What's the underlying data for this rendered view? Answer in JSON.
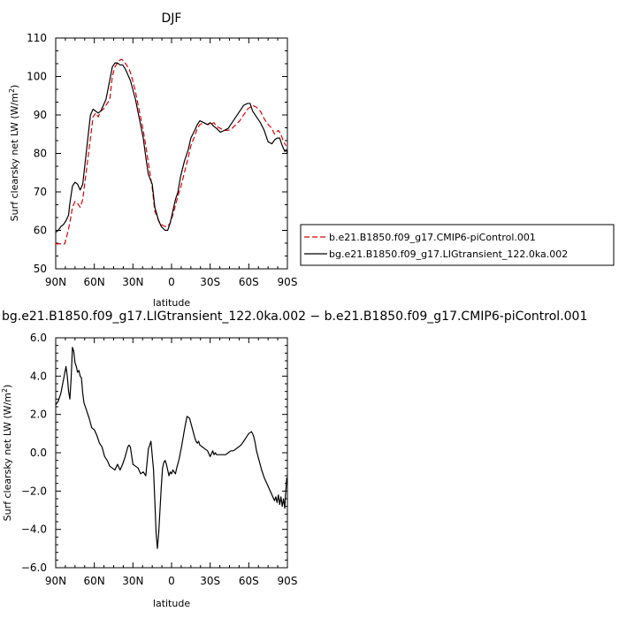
{
  "chart_data": [
    {
      "type": "line",
      "title": "DJF",
      "xlabel": "latitude",
      "ylabel": "Surf clearsky net LW (W/m",
      "ylabel_sup": "2",
      "ylabel_close": ")",
      "xlim": [
        90,
        -90
      ],
      "ylim": [
        50,
        110
      ],
      "xticks": [
        {
          "value": 90,
          "label": "90N"
        },
        {
          "value": 60,
          "label": "60N"
        },
        {
          "value": 30,
          "label": "30N"
        },
        {
          "value": 0,
          "label": "0"
        },
        {
          "value": -30,
          "label": "30S"
        },
        {
          "value": -60,
          "label": "60S"
        },
        {
          "value": -90,
          "label": "90S"
        }
      ],
      "yticks": [
        {
          "value": 50,
          "label": "50"
        },
        {
          "value": 60,
          "label": "60"
        },
        {
          "value": 70,
          "label": "70"
        },
        {
          "value": 80,
          "label": "80"
        },
        {
          "value": 90,
          "label": "90"
        },
        {
          "value": 100,
          "label": "100"
        },
        {
          "value": 110,
          "label": "110"
        }
      ],
      "grid": false,
      "legend_position": "right",
      "series": [
        {
          "name": "b.e21.B1850.f09_g17.CMIP6-piControl.001",
          "color": "#e00000",
          "dash": "dashed",
          "x": [
            90,
            87,
            85,
            83,
            81,
            79,
            77,
            75,
            73,
            71,
            69,
            66,
            63,
            61,
            59,
            57,
            55,
            53,
            51,
            48,
            46,
            44,
            41,
            39,
            37,
            35,
            33,
            31,
            28,
            25,
            22,
            20,
            18,
            15,
            13,
            10,
            8,
            5,
            3,
            1,
            -1,
            -3,
            -5,
            -7,
            -10,
            -13,
            -15,
            -18,
            -20,
            -22,
            -25,
            -28,
            -30,
            -33,
            -35,
            -38,
            -41,
            -44,
            -47,
            -50,
            -53,
            -56,
            -59,
            -61,
            -63,
            -66,
            -69,
            -72,
            -75,
            -78,
            -80,
            -83,
            -85,
            -87,
            -89
          ],
          "y": [
            56.5,
            56.5,
            56.5,
            56.5,
            59,
            62,
            66,
            67.5,
            67,
            66,
            68,
            76,
            84,
            89.5,
            90.5,
            89.5,
            91,
            91.5,
            92.5,
            94,
            100,
            102.5,
            104,
            104.5,
            104,
            103,
            102,
            100,
            96,
            91,
            86,
            82,
            77.5,
            71,
            65,
            62.5,
            61.5,
            61,
            61,
            62,
            64,
            66.5,
            69,
            71,
            75,
            79,
            82,
            84.5,
            86.5,
            87.5,
            88,
            87.5,
            87.5,
            88,
            87,
            86.5,
            86,
            86,
            86.5,
            87.5,
            88.5,
            90,
            91.5,
            92,
            92.5,
            92,
            91,
            89,
            87.5,
            86.5,
            85,
            86,
            85,
            83,
            82
          ]
        },
        {
          "name": "bg.e21.B1850.f09_g17.LIGtransient_122.0ka.002",
          "color": "#000000",
          "dash": "solid",
          "x": [
            90,
            88,
            86,
            84,
            82,
            80,
            79,
            77,
            75,
            73,
            71,
            69,
            67,
            65,
            63,
            61,
            59,
            57,
            55,
            53,
            51,
            48,
            46,
            44,
            42,
            40,
            38,
            36,
            34,
            32,
            30,
            28,
            25,
            22,
            20,
            18,
            15,
            13,
            10,
            8,
            5,
            3,
            1,
            -1,
            -3,
            -5,
            -7,
            -10,
            -13,
            -15,
            -18,
            -20,
            -22,
            -25,
            -28,
            -30,
            -33,
            -35,
            -38,
            -41,
            -44,
            -47,
            -50,
            -53,
            -56,
            -59,
            -61,
            -63,
            -66,
            -69,
            -72,
            -75,
            -78,
            -80,
            -82,
            -84,
            -86,
            -88,
            -89,
            -90
          ],
          "y": [
            59.5,
            60,
            61,
            61.5,
            62.5,
            64,
            67,
            71.5,
            72.5,
            72,
            70.5,
            72,
            78,
            84,
            90,
            91.5,
            91,
            90.5,
            91,
            92.5,
            94,
            99,
            102.5,
            103.5,
            103.5,
            103,
            103,
            102,
            100.5,
            99,
            96.5,
            94,
            89,
            84,
            79,
            74.5,
            72,
            66,
            62.5,
            61,
            60,
            60,
            62,
            65,
            68,
            70,
            74,
            78,
            81,
            84,
            86,
            87.5,
            88.5,
            88,
            87.5,
            88,
            87,
            86.5,
            85.5,
            86,
            86.5,
            88,
            89.5,
            91,
            92.5,
            93,
            93,
            91,
            89.5,
            88,
            86,
            83,
            82.5,
            83.5,
            84,
            84,
            82,
            80.5,
            81,
            80
          ]
        }
      ]
    },
    {
      "type": "line",
      "title": "bg.e21.B1850.f09_g17.LIGtransient_122.0ka.002 − b.e21.B1850.f09_g17.CMIP6-piControl.001",
      "xlabel": "latitude",
      "ylabel": "Surf clearsky net LW (W/m",
      "ylabel_sup": "2",
      "ylabel_close": ")",
      "xlim": [
        90,
        -90
      ],
      "ylim": [
        -6,
        6
      ],
      "xticks": [
        {
          "value": 90,
          "label": "90N"
        },
        {
          "value": 60,
          "label": "60N"
        },
        {
          "value": 30,
          "label": "30N"
        },
        {
          "value": 0,
          "label": "0"
        },
        {
          "value": -30,
          "label": "30S"
        },
        {
          "value": -60,
          "label": "60S"
        },
        {
          "value": -90,
          "label": "90S"
        }
      ],
      "yticks": [
        {
          "value": -6,
          "label": "−6.0"
        },
        {
          "value": -4,
          "label": "−4.0"
        },
        {
          "value": -2,
          "label": "−2.0"
        },
        {
          "value": 0,
          "label": "0.0"
        },
        {
          "value": 2,
          "label": "2.0"
        },
        {
          "value": 4,
          "label": "4.0"
        },
        {
          "value": 6,
          "label": "6.0"
        }
      ],
      "grid": false,
      "series": [
        {
          "color": "#000000",
          "dash": "solid",
          "x": [
            90,
            88,
            86,
            84,
            82,
            81,
            80,
            79,
            78,
            77,
            76,
            75,
            74,
            73,
            72,
            71,
            70,
            69,
            68,
            66,
            64,
            62,
            60,
            58,
            56,
            54,
            52,
            50,
            48,
            46,
            44,
            42,
            40,
            38,
            36,
            34,
            33,
            32,
            30,
            28,
            26,
            24,
            22,
            20,
            18,
            16,
            14,
            13,
            12,
            11,
            10,
            9,
            8,
            7,
            6,
            5,
            4,
            3,
            2,
            1,
            0,
            -1,
            -2,
            -3,
            -4,
            -6,
            -8,
            -10,
            -12,
            -14,
            -16,
            -18,
            -19,
            -20,
            -21,
            -22,
            -24,
            -26,
            -28,
            -30,
            -32,
            -33,
            -34,
            -35,
            -36,
            -38,
            -40,
            -42,
            -44,
            -46,
            -48,
            -50,
            -52,
            -54,
            -56,
            -58,
            -60,
            -62,
            -63,
            -64,
            -65,
            -66,
            -68,
            -70,
            -72,
            -74,
            -76,
            -78,
            -80,
            -81,
            -82,
            -83,
            -84,
            -85,
            -86,
            -87,
            -88,
            -88.5,
            -89,
            -89.5
          ],
          "y": [
            2.5,
            2.7,
            3.1,
            3.8,
            4.5,
            4.0,
            3.2,
            2.8,
            3.9,
            5.5,
            5.3,
            4.7,
            4.5,
            4.2,
            4.3,
            4.0,
            3.9,
            3.1,
            2.6,
            2.2,
            1.8,
            1.3,
            1.2,
            0.9,
            0.5,
            0.3,
            -0.2,
            -0.4,
            -0.7,
            -0.8,
            -0.9,
            -0.6,
            -0.9,
            -0.6,
            -0.2,
            0.3,
            0.4,
            0.3,
            -0.6,
            -0.7,
            -0.8,
            -1.1,
            -1.0,
            -1.2,
            0.2,
            0.6,
            -0.9,
            -2.5,
            -4.2,
            -5.0,
            -4.2,
            -3.0,
            -1.8,
            -0.8,
            -0.5,
            -0.4,
            -0.6,
            -0.9,
            -1.2,
            -1.0,
            -1.1,
            -0.9,
            -1.0,
            -1.1,
            -0.8,
            -0.3,
            0.4,
            1.2,
            1.9,
            1.8,
            1.3,
            0.8,
            0.6,
            0.5,
            0.6,
            0.4,
            0.3,
            0.2,
            0.1,
            -0.2,
            0.1,
            -0.1,
            0.0,
            -0.1,
            -0.1,
            -0.1,
            -0.1,
            -0.1,
            0.0,
            0.1,
            0.1,
            0.2,
            0.3,
            0.4,
            0.6,
            0.8,
            1.0,
            1.1,
            1.0,
            0.8,
            0.5,
            0.1,
            -0.4,
            -0.9,
            -1.3,
            -1.6,
            -1.9,
            -2.2,
            -2.5,
            -2.3,
            -2.6,
            -2.2,
            -2.7,
            -2.3,
            -2.8,
            -2.4,
            -2.9,
            -2.2,
            -1.8,
            -1.3
          ]
        }
      ]
    }
  ]
}
